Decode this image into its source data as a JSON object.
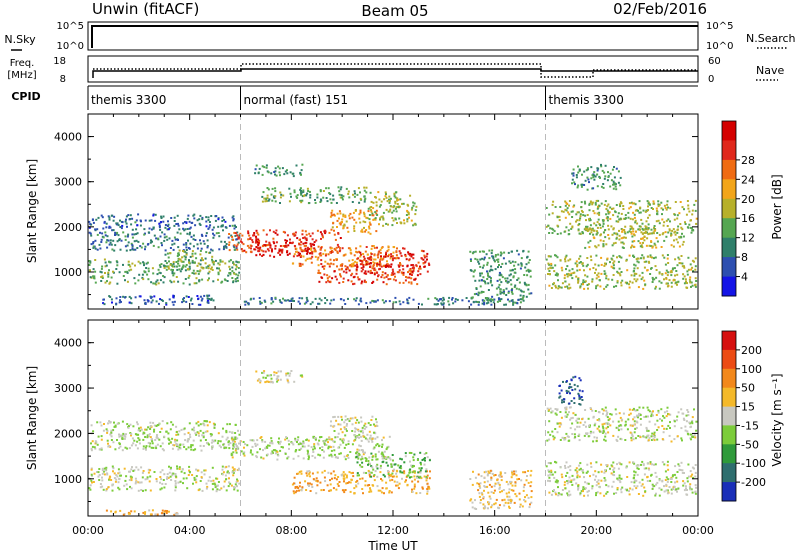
{
  "header": {
    "station": "Unwin (fitACF)",
    "beam": "Beam 05",
    "date": "02/Feb/2016"
  },
  "strips": {
    "nsky_label": "N.Sky",
    "nsky_ticks": [
      "10^5",
      "10^0"
    ],
    "nsearch_label": "N.Search",
    "freq_label_1": "Freq.",
    "freq_label_2": "[MHz]",
    "freq_ticks": [
      "18",
      "8"
    ],
    "nave_label": "Nave",
    "nave_ticks": [
      "60",
      "0"
    ],
    "cpid_label": "CPID"
  },
  "cpid_segments": [
    {
      "start_hour": 0,
      "end_hour": 6,
      "label": "themis 3300"
    },
    {
      "start_hour": 6,
      "end_hour": 18,
      "label": "normal (fast) 151"
    },
    {
      "start_hour": 18,
      "end_hour": 24,
      "label": "themis 3300"
    }
  ],
  "axes": {
    "xlabel": "Time UT",
    "ylabel": "Slant Range [km]",
    "x_ticks": [
      "00:00",
      "04:00",
      "08:00",
      "12:00",
      "16:00",
      "20:00",
      "00:00"
    ],
    "x_range_hours": [
      0,
      24
    ],
    "y_ticks": [
      1000,
      2000,
      3000,
      4000
    ],
    "y_range_km": [
      180,
      4500
    ]
  },
  "power_scale": {
    "label": "Power [dB]",
    "ticks": [
      "4",
      "8",
      "12",
      "16",
      "20",
      "24",
      "28"
    ],
    "colors": [
      "#1414e6",
      "#2d4fb0",
      "#2f7f6a",
      "#55a651",
      "#b7b02a",
      "#f2a51a",
      "#ef6b12",
      "#e0281c",
      "#d40000"
    ]
  },
  "velocity_scale": {
    "label": "Velocity [m s⁻¹]",
    "ticks": [
      "200",
      "100",
      "50",
      "15",
      "-15",
      "-50",
      "-100",
      "-200"
    ],
    "colors": [
      "#1a2fb8",
      "#2e6e6e",
      "#2f9a3a",
      "#7ccc3a",
      "#c8c8c0",
      "#f4b92a",
      "#f2881b",
      "#ec4b14",
      "#d61010"
    ]
  },
  "chart_data": [
    {
      "type": "heatmap",
      "panel": "power",
      "x_unit": "hours UT",
      "y_unit": "km",
      "colorbar": "power_scale",
      "regions": [
        {
          "x": [
            0,
            6
          ],
          "y": [
            1900,
            2300
          ],
          "level": 0.18
        },
        {
          "x": [
            0,
            6
          ],
          "y": [
            1450,
            1900
          ],
          "level": 0.22
        },
        {
          "x": [
            0,
            6
          ],
          "y": [
            700,
            1300
          ],
          "level": 0.35
        },
        {
          "x": [
            0.5,
            5
          ],
          "y": [
            250,
            500
          ],
          "level": 0.15
        },
        {
          "x": [
            3,
            5
          ],
          "y": [
            1000,
            1500
          ],
          "level": 0.4
        },
        {
          "x": [
            5.5,
            10
          ],
          "y": [
            1400,
            1950
          ],
          "level": 0.85
        },
        {
          "x": [
            6.5,
            9
          ],
          "y": [
            1300,
            1700
          ],
          "level": 0.95
        },
        {
          "x": [
            8,
            12.5
          ],
          "y": [
            1100,
            1600
          ],
          "level": 0.7
        },
        {
          "x": [
            9,
            13
          ],
          "y": [
            700,
            1200
          ],
          "level": 0.85
        },
        {
          "x": [
            10.5,
            13.5
          ],
          "y": [
            900,
            1500
          ],
          "level": 0.9
        },
        {
          "x": [
            9.5,
            11.5
          ],
          "y": [
            1800,
            2400
          ],
          "level": 0.65
        },
        {
          "x": [
            11,
            13
          ],
          "y": [
            2000,
            2800
          ],
          "level": 0.45
        },
        {
          "x": [
            6.5,
            8.5
          ],
          "y": [
            3100,
            3400
          ],
          "level": 0.3
        },
        {
          "x": [
            6.8,
            11
          ],
          "y": [
            2500,
            2900
          ],
          "level": 0.35
        },
        {
          "x": [
            6,
            17
          ],
          "y": [
            250,
            450
          ],
          "level": 0.2
        },
        {
          "x": [
            15,
            17.5
          ],
          "y": [
            300,
            1500
          ],
          "level": 0.3
        },
        {
          "x": [
            18,
            24
          ],
          "y": [
            1800,
            2600
          ],
          "level": 0.45
        },
        {
          "x": [
            19.5,
            23.5
          ],
          "y": [
            1500,
            2000
          ],
          "level": 0.5
        },
        {
          "x": [
            18,
            24
          ],
          "y": [
            600,
            1400
          ],
          "level": 0.45
        },
        {
          "x": [
            19,
            21
          ],
          "y": [
            2800,
            3400
          ],
          "level": 0.3
        }
      ]
    },
    {
      "type": "heatmap",
      "panel": "velocity",
      "x_unit": "hours UT",
      "y_unit": "km",
      "colorbar": "velocity_scale",
      "regions": [
        {
          "x": [
            0,
            6
          ],
          "y": [
            1600,
            2300
          ],
          "level": 0.45
        },
        {
          "x": [
            0,
            6
          ],
          "y": [
            700,
            1300
          ],
          "level": 0.48
        },
        {
          "x": [
            0.5,
            4
          ],
          "y": [
            180,
            330
          ],
          "level": 0.66
        },
        {
          "x": [
            5.5,
            12
          ],
          "y": [
            1400,
            1950
          ],
          "level": 0.45
        },
        {
          "x": [
            8,
            13.5
          ],
          "y": [
            650,
            1200
          ],
          "level": 0.66
        },
        {
          "x": [
            10.5,
            13.5
          ],
          "y": [
            1000,
            1600
          ],
          "level": 0.35
        },
        {
          "x": [
            9.5,
            11.5
          ],
          "y": [
            1800,
            2400
          ],
          "level": 0.48
        },
        {
          "x": [
            6.5,
            8.5
          ],
          "y": [
            3100,
            3400
          ],
          "level": 0.5
        },
        {
          "x": [
            15,
            17.5
          ],
          "y": [
            300,
            1200
          ],
          "level": 0.6
        },
        {
          "x": [
            18,
            24
          ],
          "y": [
            1800,
            2600
          ],
          "level": 0.47
        },
        {
          "x": [
            18,
            24
          ],
          "y": [
            600,
            1400
          ],
          "level": 0.47
        },
        {
          "x": [
            18.5,
            19.5
          ],
          "y": [
            2600,
            3300
          ],
          "level": 0.05
        }
      ]
    }
  ]
}
